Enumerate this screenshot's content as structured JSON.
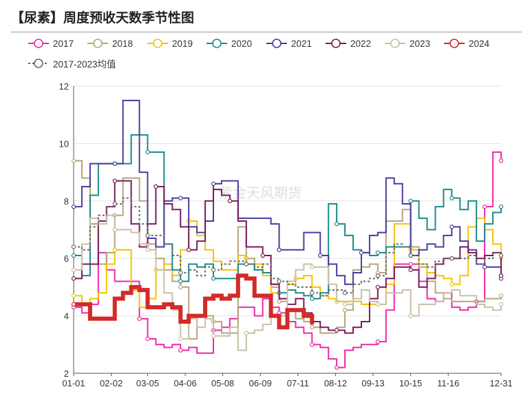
{
  "header": {
    "title": "【尿素】周度预收天数季节性图"
  },
  "watermark": "紫金天风期货",
  "chart_data": {
    "type": "line",
    "title": "【尿素】周度预收天数季节性图",
    "xlabel": "",
    "ylabel": "",
    "ylim": [
      2,
      12
    ],
    "yticks": [
      2,
      4,
      6,
      8,
      10,
      12
    ],
    "xlim": [
      1,
      365
    ],
    "xtick_labels": [
      "01-01",
      "02-02",
      "03-05",
      "04-06",
      "05-08",
      "06-09",
      "07-11",
      "08-12",
      "09-13",
      "10-15",
      "11-16",
      "12-31"
    ],
    "xtick_days": [
      1,
      33,
      64,
      96,
      128,
      160,
      192,
      224,
      256,
      288,
      320,
      365
    ],
    "grid": "horizontal",
    "legend": "top",
    "series": [
      {
        "name": "2017",
        "color": "#ee28a5",
        "width": 2,
        "dash": "",
        "x": [
          1,
          8,
          15,
          22,
          29,
          36,
          43,
          50,
          57,
          64,
          71,
          78,
          85,
          92,
          99,
          106,
          113,
          120,
          127,
          134,
          141,
          148,
          155,
          162,
          169,
          176,
          183,
          190,
          197,
          204,
          211,
          218,
          225,
          232,
          239,
          246,
          253,
          260,
          267,
          274,
          281,
          288,
          295,
          302,
          309,
          316,
          323,
          330,
          337,
          344,
          351,
          358,
          365
        ],
        "y": [
          4.3,
          4.1,
          4.4,
          6.2,
          5.6,
          5.2,
          5.2,
          5.2,
          3.9,
          3.2,
          3.0,
          2.9,
          3.0,
          2.8,
          2.9,
          2.7,
          2.7,
          3.5,
          3.6,
          3.9,
          4.3,
          4.3,
          4.0,
          4.6,
          4.3,
          4.1,
          3.8,
          3.6,
          3.4,
          3.0,
          2.9,
          2.5,
          2.2,
          2.8,
          2.9,
          3.0,
          3.0,
          3.1,
          4.2,
          5.8,
          5.8,
          5.8,
          5.2,
          4.6,
          4.5,
          4.8,
          4.3,
          4.2,
          4.3,
          4.5,
          7.8,
          9.7,
          9.4
        ],
        "markers": [
          1,
          57,
          64,
          92,
          120,
          176,
          204,
          225,
          260,
          288,
          344,
          351,
          365
        ]
      },
      {
        "name": "2018",
        "color": "#b7a57a",
        "width": 2,
        "dash": "",
        "x": [
          1,
          8,
          15,
          22,
          29,
          36,
          43,
          50,
          57,
          64,
          71,
          78,
          85,
          92,
          99,
          106,
          113,
          120,
          127,
          134,
          141,
          148,
          155,
          162,
          169,
          176,
          183,
          190,
          197,
          204,
          211,
          218,
          225,
          232,
          239,
          246,
          253,
          260,
          267,
          274,
          281,
          288,
          295,
          302,
          309,
          316,
          323,
          330,
          337,
          344,
          351,
          358,
          365
        ],
        "y": [
          9.4,
          8.8,
          7.2,
          5.8,
          6.2,
          7.5,
          8.8,
          8.8,
          8.0,
          6.5,
          6.0,
          5.6,
          5.2,
          5.0,
          3.2,
          4.0,
          4.0,
          3.8,
          3.4,
          3.4,
          7.1,
          6.0,
          5.6,
          5.5,
          5.0,
          4.5,
          4.2,
          3.9,
          3.8,
          3.6,
          3.4,
          3.4,
          3.6,
          4.2,
          5.6,
          5.7,
          5.8,
          5.5,
          7.3,
          7.3,
          7.7,
          6.4,
          5.7,
          5.2,
          4.8,
          4.6,
          4.5,
          4.5,
          4.5,
          4.5,
          4.6,
          4.6,
          4.7
        ],
        "markers": [
          1,
          36,
          64,
          92,
          120,
          148,
          176,
          204,
          232,
          260,
          288,
          320,
          365
        ]
      },
      {
        "name": "2019",
        "color": "#f6c200",
        "width": 2,
        "dash": "",
        "x": [
          1,
          8,
          15,
          22,
          29,
          36,
          43,
          50,
          57,
          64,
          71,
          78,
          85,
          92,
          99,
          106,
          113,
          120,
          127,
          134,
          141,
          148,
          155,
          162,
          169,
          176,
          183,
          190,
          197,
          204,
          211,
          218,
          225,
          232,
          239,
          246,
          253,
          260,
          267,
          274,
          281,
          288,
          295,
          302,
          309,
          316,
          323,
          330,
          337,
          344,
          351,
          358,
          365
        ],
        "y": [
          4.7,
          4.4,
          4.6,
          4.8,
          5.8,
          6.3,
          6.3,
          4.9,
          4.3,
          4.6,
          5.6,
          5.8,
          5.4,
          6.3,
          7.3,
          6.8,
          6.3,
          5.9,
          5.6,
          5.6,
          6.1,
          5.8,
          5.8,
          5.4,
          4.8,
          4.6,
          5.1,
          5.3,
          5.4,
          5.0,
          4.7,
          4.6,
          4.5,
          4.5,
          4.5,
          4.4,
          4.4,
          4.4,
          5.1,
          7.2,
          7.2,
          6.3,
          5.8,
          5.5,
          5.4,
          5.3,
          5.1,
          5.4,
          7.1,
          7.4,
          7.0,
          6.5,
          6.0
        ],
        "markers": [
          1,
          36,
          71,
          99,
          128,
          160,
          190,
          225,
          260,
          288,
          323,
          365
        ]
      },
      {
        "name": "2020",
        "color": "#1a8a8a",
        "width": 2,
        "dash": "",
        "x": [
          1,
          8,
          15,
          22,
          29,
          36,
          43,
          50,
          57,
          64,
          71,
          78,
          85,
          92,
          99,
          106,
          113,
          120,
          127,
          134,
          141,
          148,
          155,
          162,
          169,
          176,
          183,
          190,
          197,
          204,
          211,
          218,
          225,
          232,
          239,
          246,
          253,
          260,
          267,
          274,
          281,
          288,
          295,
          302,
          309,
          316,
          323,
          330,
          337,
          344,
          351,
          358,
          365
        ],
        "y": [
          6.1,
          5.4,
          8.2,
          9.3,
          9.3,
          9.3,
          9.3,
          10.3,
          10.3,
          9.7,
          9.7,
          6.5,
          5.6,
          5.2,
          5.8,
          5.7,
          5.8,
          5.3,
          5.3,
          5.3,
          5.8,
          5.8,
          5.6,
          5.5,
          5.1,
          4.8,
          4.9,
          4.8,
          4.7,
          4.6,
          4.8,
          7.9,
          7.2,
          6.8,
          6.3,
          6.2,
          6.1,
          6.2,
          6.4,
          6.4,
          6.4,
          8.0,
          7.4,
          7.0,
          7.8,
          8.4,
          8.1,
          7.7,
          8.0,
          6.6,
          7.2,
          7.6,
          7.8
        ],
        "markers": [
          1,
          36,
          64,
          92,
          120,
          148,
          176,
          204,
          225,
          260,
          288,
          323,
          365
        ]
      },
      {
        "name": "2021",
        "color": "#4b3a9e",
        "width": 2,
        "dash": "",
        "x": [
          1,
          8,
          15,
          22,
          29,
          36,
          43,
          50,
          57,
          64,
          71,
          78,
          85,
          92,
          99,
          106,
          113,
          120,
          127,
          134,
          141,
          148,
          155,
          162,
          169,
          176,
          183,
          190,
          197,
          204,
          211,
          218,
          225,
          232,
          239,
          246,
          253,
          260,
          267,
          274,
          281,
          288,
          295,
          302,
          309,
          316,
          323,
          330,
          337,
          344,
          351,
          358,
          365
        ],
        "y": [
          7.8,
          8.5,
          9.3,
          9.3,
          9.3,
          9.3,
          11.5,
          11.5,
          9.0,
          6.7,
          6.4,
          8.0,
          8.1,
          8.1,
          7.1,
          6.9,
          7.3,
          8.6,
          8.7,
          8.7,
          7.4,
          7.4,
          7.4,
          7.4,
          7.2,
          6.3,
          6.3,
          6.3,
          6.9,
          6.9,
          6.1,
          5.8,
          5.4,
          5.1,
          5.5,
          6.2,
          6.8,
          6.9,
          8.8,
          8.6,
          7.9,
          6.1,
          6.3,
          6.5,
          6.4,
          6.8,
          7.1,
          6.6,
          6.3,
          5.8,
          5.7,
          5.7,
          5.3
        ],
        "markers": [
          1,
          36,
          92,
          120,
          176,
          211,
          246,
          288,
          323,
          351,
          365
        ]
      },
      {
        "name": "2022",
        "color": "#7a1a5a",
        "width": 2,
        "dash": "",
        "x": [
          1,
          8,
          15,
          22,
          29,
          36,
          43,
          50,
          57,
          64,
          71,
          78,
          85,
          92,
          99,
          106,
          113,
          120,
          127,
          134,
          141,
          148,
          155,
          162,
          169,
          176,
          183,
          190,
          197,
          204,
          211,
          218,
          225,
          232,
          239,
          246,
          253,
          260,
          267,
          274,
          281,
          288,
          295,
          302,
          309,
          316,
          323,
          330,
          337,
          344,
          351,
          358,
          365
        ],
        "y": [
          5.3,
          5.8,
          5.8,
          7.3,
          7.8,
          8.7,
          8.7,
          7.2,
          6.4,
          7.2,
          8.5,
          7.9,
          7.7,
          7.1,
          6.3,
          6.6,
          8.0,
          8.4,
          8.2,
          8.0,
          7.3,
          6.4,
          6.4,
          6.1,
          5.1,
          4.6,
          4.4,
          4.6,
          4.1,
          3.8,
          3.6,
          3.5,
          3.5,
          3.4,
          3.6,
          3.8,
          4.6,
          5.0,
          5.3,
          5.7,
          5.7,
          5.6,
          5.0,
          5.3,
          5.8,
          6.0,
          6.0,
          6.4,
          6.2,
          6.0,
          6.1,
          6.2,
          5.4
        ],
        "markers": [
          1,
          36,
          71,
          99,
          134,
          162,
          197,
          225,
          260,
          288,
          323,
          365
        ]
      },
      {
        "name": "2023",
        "color": "#c9bfa6",
        "width": 2,
        "dash": "",
        "x": [
          1,
          8,
          15,
          22,
          29,
          36,
          43,
          50,
          57,
          64,
          71,
          78,
          85,
          92,
          99,
          106,
          113,
          120,
          127,
          134,
          141,
          148,
          155,
          162,
          169,
          176,
          183,
          190,
          197,
          204,
          211,
          218,
          225,
          232,
          239,
          246,
          253,
          260,
          267,
          274,
          281,
          288,
          295,
          302,
          309,
          316,
          323,
          330,
          337,
          344,
          351,
          358,
          365
        ],
        "y": [
          5.6,
          6.5,
          7.4,
          7.2,
          7.5,
          7.0,
          7.0,
          6.9,
          6.5,
          6.3,
          5.6,
          4.8,
          4.2,
          3.2,
          3.9,
          3.6,
          3.9,
          3.3,
          3.3,
          3.6,
          2.8,
          3.4,
          3.5,
          3.7,
          4.0,
          4.0,
          5.2,
          5.6,
          5.8,
          5.7,
          5.7,
          5.1,
          4.5,
          4.4,
          4.6,
          4.9,
          4.5,
          4.4,
          4.8,
          4.8,
          4.9,
          4.0,
          4.4,
          4.4,
          4.5,
          4.8,
          4.9,
          4.7,
          4.7,
          4.4,
          4.3,
          4.2,
          4.4
        ],
        "markers": [
          1,
          36,
          64,
          92,
          120,
          148,
          176,
          204,
          232,
          260,
          288,
          320,
          365
        ]
      },
      {
        "name": "2024",
        "color": "#d42a2a",
        "width": 6,
        "dash": "",
        "x": [
          1,
          8,
          15,
          22,
          29,
          36,
          43,
          50,
          57,
          64,
          71,
          78,
          85,
          92,
          99,
          106,
          113,
          120,
          127,
          134,
          141,
          148,
          155,
          162,
          169,
          176,
          183,
          190,
          197,
          204
        ],
        "y": [
          4.4,
          4.4,
          3.9,
          3.9,
          3.9,
          4.6,
          4.8,
          5.0,
          4.9,
          4.3,
          4.3,
          4.4,
          4.3,
          3.8,
          4.0,
          4.0,
          4.6,
          4.7,
          4.6,
          4.7,
          5.4,
          5.3,
          4.7,
          4.7,
          4.0,
          3.6,
          4.2,
          4.2,
          4.0,
          3.7
        ],
        "markers": [
          1
        ]
      },
      {
        "name": "2017-2023均值",
        "color": "#666666",
        "width": 2,
        "dash": "3,3",
        "x": [
          1,
          8,
          15,
          22,
          29,
          36,
          43,
          50,
          57,
          64,
          71,
          78,
          85,
          92,
          99,
          106,
          113,
          120,
          127,
          134,
          141,
          148,
          155,
          162,
          169,
          176,
          183,
          190,
          197,
          204,
          211,
          218,
          225,
          232,
          239,
          246,
          253,
          260,
          267,
          274,
          281,
          288,
          295,
          302,
          309,
          316,
          323,
          330,
          337,
          344,
          351,
          358,
          365
        ],
        "y": [
          6.4,
          6.3,
          7.1,
          7.5,
          7.8,
          7.9,
          8.1,
          7.8,
          7.2,
          6.8,
          6.8,
          6.5,
          6.1,
          5.5,
          5.6,
          5.4,
          5.7,
          5.6,
          5.8,
          5.9,
          5.9,
          5.8,
          5.7,
          5.8,
          5.3,
          5.2,
          5.1,
          5.0,
          5.0,
          4.8,
          4.7,
          4.9,
          4.9,
          4.8,
          5.1,
          5.2,
          5.3,
          5.4,
          6.2,
          6.5,
          6.4,
          6.1,
          5.8,
          5.7,
          5.9,
          6.0,
          6.0,
          6.0,
          6.1,
          5.8,
          6.0,
          6.2,
          6.1
        ],
        "markers": [
          1,
          36,
          64,
          92,
          120,
          148,
          176,
          204,
          232,
          260,
          288,
          323,
          365
        ]
      }
    ]
  }
}
